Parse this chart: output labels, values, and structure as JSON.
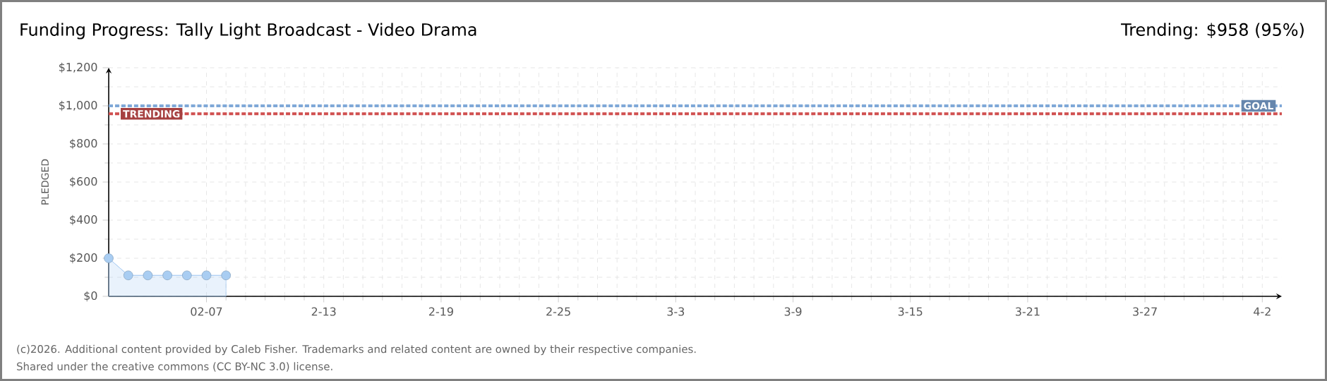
{
  "chart_data": {
    "type": "area",
    "title": "Funding Progress: Tally Light Broadcast - Video Drama",
    "ylabel": "PLEDGED",
    "annotations": [
      "Trending: $958 (95%)",
      "(c)2026. Additional content provided by Caleb Fisher. Trademarks and related content are owned by their respective companies.",
      "Shared under the creative commons (CC BY-NC 3.0) license."
    ],
    "x": [
      "2026-02-02",
      "2026-02-03",
      "2026-02-04",
      "2026-02-05",
      "2026-02-06",
      "2026-02-07",
      "2026-02-08"
    ],
    "series": [
      {
        "color": "#a9cdf2",
        "values": [
          200,
          110,
          110,
          110,
          110,
          110,
          110
        ]
      }
    ],
    "marker": "circle",
    "xlim": [
      "2026-02-02",
      "2026-04-03"
    ],
    "xticks": [
      {
        "value": "2026-02-07",
        "label": "02-07"
      },
      {
        "value": "2026-02-13",
        "label": "2-13"
      },
      {
        "value": "2026-02-19",
        "label": "2-19"
      },
      {
        "value": "2026-02-25",
        "label": "2-25"
      },
      {
        "value": "2026-03-03",
        "label": "3-3"
      },
      {
        "value": "2026-03-09",
        "label": "3-9"
      },
      {
        "value": "2026-03-15",
        "label": "3-15"
      },
      {
        "value": "2026-03-21",
        "label": "3-21"
      },
      {
        "value": "2026-03-27",
        "label": "3-27"
      },
      {
        "value": "2026-04-02",
        "label": "4-2"
      }
    ],
    "ylim": [
      0,
      1200
    ],
    "yticks": [
      {
        "value": 0,
        "label": "$0"
      },
      {
        "value": 200,
        "label": "$200"
      },
      {
        "value": 400,
        "label": "$400"
      },
      {
        "value": 600,
        "label": "$600"
      },
      {
        "value": 800,
        "label": "$800"
      },
      {
        "value": 1000,
        "label": "$1,000"
      },
      {
        "value": 1200,
        "label": "$1,200"
      }
    ],
    "grid": true,
    "ref_lines": [
      {
        "axis": "y",
        "value": 1000,
        "label": "GOAL",
        "color": "#7fa8d8",
        "line_style": "dashed"
      },
      {
        "axis": "y",
        "value": 958,
        "label": "TRENDING",
        "color": "#d05050",
        "line_style": "dashed"
      }
    ]
  }
}
